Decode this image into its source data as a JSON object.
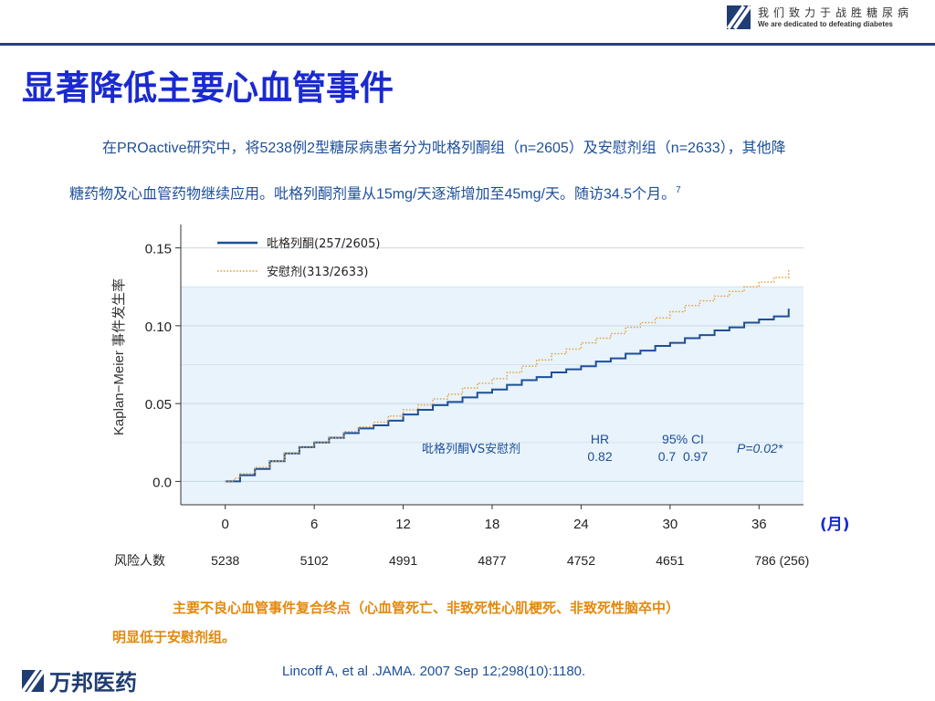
{
  "header": {
    "slogan_cn": "我们致力于战胜糖尿病",
    "slogan_en": "We are dedicated to defeating diabetes"
  },
  "page_title": "显著降低主要心血管事件",
  "intro": {
    "line1": "在PROactive研究中，将5238例2型糖尿病患者分为吡格列酮组（n=2605）及安慰剂组（n=2633），其他降",
    "line2": "糖药物及心血管药物继续应用。吡格列酮剂量从15mg/天逐渐增加至45mg/天。随访34.5个月。",
    "ref_mark": "7"
  },
  "colors": {
    "title": "#1a2ad0",
    "pioglitazone": "#1d4f9a",
    "placebo": "#e69a2a",
    "note": "#e3890d",
    "plot_bg": "#e8f3fb"
  },
  "chart_data": {
    "type": "line",
    "ylabel": "Kaplan−Meier 事件发生率",
    "xunit_label": "(月)",
    "xlim": [
      -3,
      39
    ],
    "ylim": [
      -0.015,
      0.165
    ],
    "xticks": [
      0,
      6,
      12,
      18,
      24,
      30,
      36
    ],
    "yticks": [
      0.0,
      0.05,
      0.1,
      0.15
    ],
    "ytick_labels": [
      "0.0",
      "0.05",
      "0.10",
      "0.15"
    ],
    "grid": "horizontal",
    "legend_position": "top-left",
    "series": [
      {
        "name": "吡格列酮(257/2605)",
        "style": "solid",
        "x": [
          0,
          0.6,
          1,
          2,
          3,
          4,
          5,
          6,
          7,
          8,
          9,
          10,
          11,
          12,
          13,
          14,
          15,
          16,
          17,
          18,
          19,
          20,
          21,
          22,
          23,
          24,
          25,
          26,
          27,
          28,
          29,
          30,
          31,
          32,
          33,
          34,
          35,
          36,
          37,
          38
        ],
        "y": [
          0.0,
          0.0,
          0.004,
          0.008,
          0.013,
          0.018,
          0.022,
          0.025,
          0.028,
          0.031,
          0.034,
          0.036,
          0.039,
          0.043,
          0.046,
          0.049,
          0.051,
          0.054,
          0.057,
          0.059,
          0.062,
          0.065,
          0.067,
          0.07,
          0.072,
          0.074,
          0.077,
          0.079,
          0.082,
          0.084,
          0.087,
          0.089,
          0.092,
          0.094,
          0.097,
          0.099,
          0.102,
          0.104,
          0.106,
          0.111
        ]
      },
      {
        "name": "安慰剂(313/2633)",
        "style": "dotted",
        "x": [
          0,
          0.6,
          1,
          2,
          3,
          4,
          5,
          6,
          7,
          8,
          9,
          10,
          11,
          12,
          13,
          14,
          15,
          16,
          17,
          18,
          19,
          20,
          21,
          22,
          23,
          24,
          25,
          26,
          27,
          28,
          29,
          30,
          31,
          32,
          33,
          34,
          35,
          36,
          37,
          38
        ],
        "y": [
          0.0,
          0.002,
          0.005,
          0.009,
          0.013,
          0.018,
          0.022,
          0.025,
          0.028,
          0.032,
          0.035,
          0.038,
          0.042,
          0.046,
          0.049,
          0.053,
          0.056,
          0.06,
          0.063,
          0.066,
          0.07,
          0.074,
          0.078,
          0.082,
          0.085,
          0.089,
          0.092,
          0.095,
          0.099,
          0.102,
          0.105,
          0.109,
          0.113,
          0.116,
          0.119,
          0.122,
          0.125,
          0.128,
          0.131,
          0.136
        ]
      }
    ],
    "stats": {
      "comparison": "吡格列酮VS安慰剂",
      "hr_label": "HR",
      "hr_value": "0.82",
      "ci_label": "95% CI",
      "ci_value": "0.7  0.97",
      "p_value": "P=0.02*"
    },
    "risk_table": {
      "label": "风险人数",
      "values": [
        "5238",
        "5102",
        "4991",
        "4877",
        "4752",
        "4651",
        "786  (256)"
      ]
    }
  },
  "note": {
    "line1": "主要不良心血管事件复合终点（心血管死亡、非致死性心肌梗死、非致死性脑卒中）",
    "line2": "明显低于安慰剂组。"
  },
  "footer": {
    "brand": "万邦医药",
    "reference": "Lincoff A, et al .JAMA. 2007 Sep 12;298(10):1180."
  }
}
